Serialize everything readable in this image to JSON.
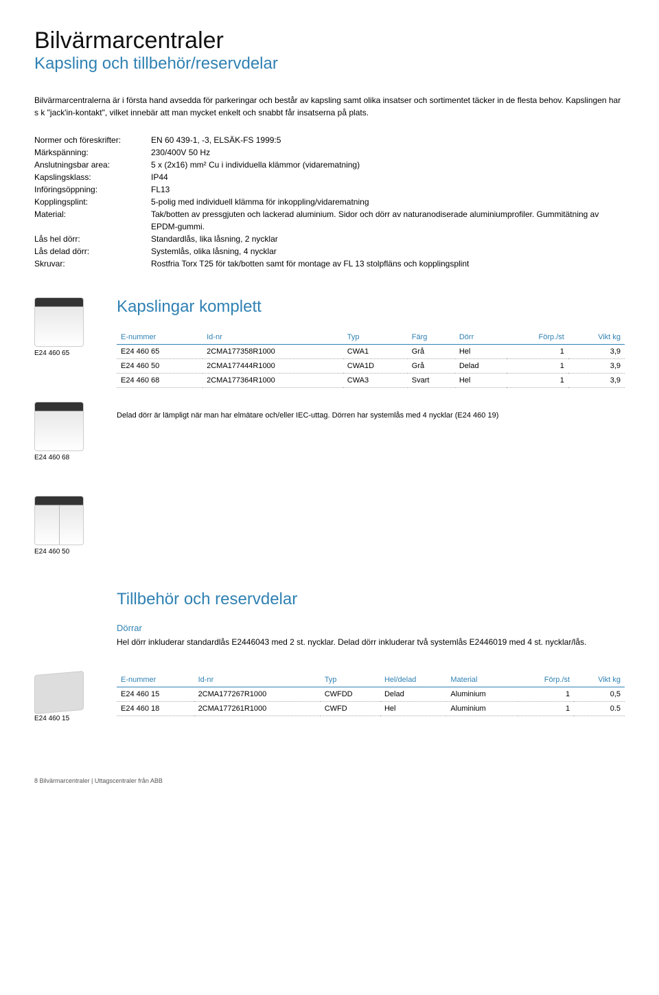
{
  "header": {
    "title": "Bilvärmarcentraler",
    "subtitle": "Kapsling och tillbehör/reservdelar"
  },
  "intro": "Bilvärmarcentralerna är i första hand avsedda för parkeringar och består av kapsling samt olika insatser och sortimentet täcker in de flesta behov. Kapslingen har s k \"jack'in-kontakt\", vilket innebär att man mycket enkelt och snabbt får insatserna på plats.",
  "specs": [
    {
      "label": "Normer och föreskrifter:",
      "value": "EN 60 439-1, -3, ELSÄK-FS 1999:5"
    },
    {
      "label": "Märkspänning:",
      "value": "230/400V 50 Hz"
    },
    {
      "label": "Anslutningsbar area:",
      "value": "5 x (2x16) mm² Cu i individuella klämmor (vidarematning)"
    },
    {
      "label": "Kapslingsklass:",
      "value": "IP44"
    },
    {
      "label": "Införingsöppning:",
      "value": "FL13"
    },
    {
      "label": "Kopplingsplint:",
      "value": "5-polig med individuell klämma för inkoppling/vidarematning"
    },
    {
      "label": "Material:",
      "value": "Tak/botten av pressgjuten och lackerad aluminium. Sidor och dörr av naturanodiserade aluminiumprofiler. Gummitätning av EPDM-gummi."
    },
    {
      "label": "Lås hel dörr:",
      "value": "Standardlås, lika låsning, 2 nycklar"
    },
    {
      "label": "Lås delad dörr:",
      "value": "Systemlås, olika låsning, 4 nycklar"
    },
    {
      "label": "Skruvar:",
      "value": "Rostfria Torx T25 för tak/botten samt för montage av FL 13 stolpfläns och kopplingsplint"
    }
  ],
  "section1": {
    "title": "Kapslingar komplett",
    "columns": [
      "E-nummer",
      "Id-nr",
      "Typ",
      "Färg",
      "Dörr",
      "Förp./st",
      "Vikt kg"
    ],
    "rows": [
      [
        "E24 460 65",
        "2CMA177358R1000",
        "CWA1",
        "Grå",
        "Hel",
        "1",
        "3,9"
      ],
      [
        "E24 460 50",
        "2CMA177444R1000",
        "CWA1D",
        "Grå",
        "Delad",
        "1",
        "3,9"
      ],
      [
        "E24 460 68",
        "2CMA177364R1000",
        "CWA3",
        "Svart",
        "Hel",
        "1",
        "3,9"
      ]
    ],
    "note": "Delad dörr är lämpligt när man har elmätare och/eller IEC-uttag. Dörren har systemlås med 4 nycklar (E24 460 19)",
    "thumbs": {
      "a": "E24 460 65",
      "b": "E24 460 68",
      "c": "E24 460 50"
    }
  },
  "section2": {
    "title": "Tillbehör och reservdelar",
    "sub_heading": "Dörrar",
    "sub_text": "Hel dörr inkluderar standardlås E2446043 med 2 st. nycklar. Delad dörr inkluderar två systemlås E2446019 med 4 st. nycklar/lås.",
    "columns": [
      "E-nummer",
      "Id-nr",
      "Typ",
      "Hel/delad",
      "Material",
      "Förp./st",
      "Vikt kg"
    ],
    "rows": [
      [
        "E24 460 15",
        "2CMA177267R1000",
        "CWFDD",
        "Delad",
        "Aluminium",
        "1",
        "0,5"
      ],
      [
        "E24 460 18",
        "2CMA177261R1000",
        "CWFD",
        "Hel",
        "Aluminium",
        "1",
        "0.5"
      ]
    ],
    "thumb": "E24 460 15"
  },
  "footer": "8 Bilvärmarcentraler | Uttagscentraler från ABB"
}
